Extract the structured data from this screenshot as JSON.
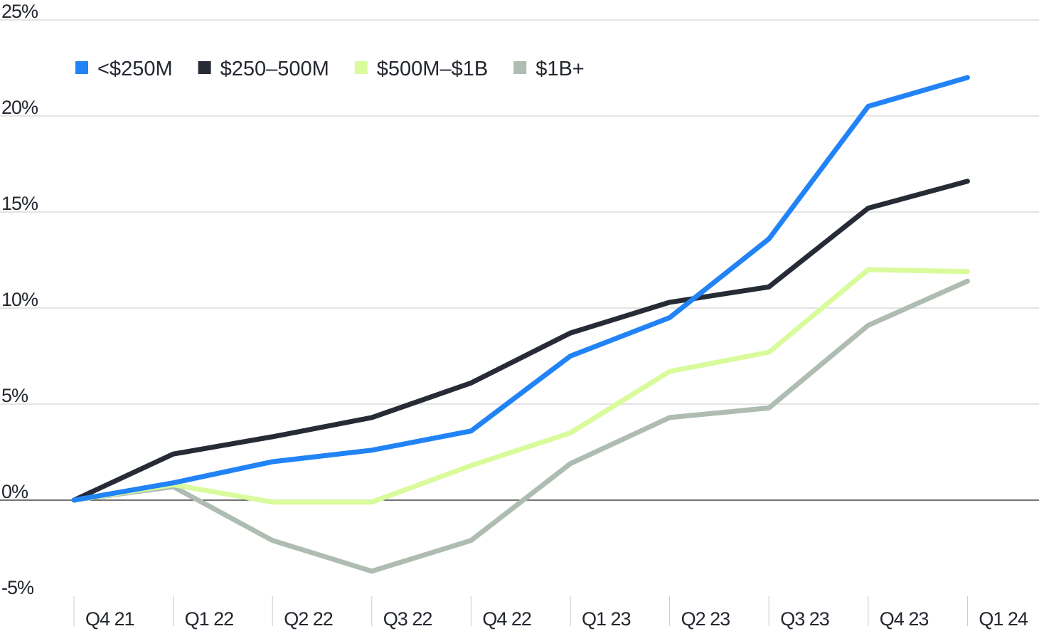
{
  "chart_data": {
    "type": "line",
    "title": "",
    "xlabel": "",
    "ylabel": "",
    "categories": [
      "Q4 21",
      "Q1 22",
      "Q2 22",
      "Q3 22",
      "Q4 22",
      "Q1 23",
      "Q2 23",
      "Q3 23",
      "Q4 23",
      "Q1 24"
    ],
    "ylim": [
      -5,
      25
    ],
    "yticks": [
      -5,
      0,
      5,
      10,
      15,
      20,
      25
    ],
    "ytick_labels": [
      "-5%",
      "0%",
      "5%",
      "10%",
      "15%",
      "20%",
      "25%"
    ],
    "grid": true,
    "legend_position": "top-left",
    "series": [
      {
        "name": "<$250M",
        "color": "#2183f5",
        "values": [
          0,
          0.9,
          2.0,
          2.6,
          3.6,
          7.5,
          9.5,
          13.6,
          20.5,
          22.0
        ]
      },
      {
        "name": "$250–500M",
        "color": "#262b36",
        "values": [
          0,
          2.4,
          3.3,
          4.3,
          6.1,
          8.7,
          10.3,
          11.1,
          15.2,
          16.6
        ]
      },
      {
        "name": "$500M–$1B",
        "color": "#d9fb9c",
        "values": [
          0,
          0.8,
          -0.1,
          -0.1,
          1.8,
          3.5,
          6.7,
          7.7,
          12.0,
          11.9
        ]
      },
      {
        "name": "$1B+",
        "color": "#aebcb1",
        "values": [
          0,
          0.7,
          -2.1,
          -3.7,
          -2.1,
          1.9,
          4.3,
          4.8,
          9.1,
          11.4
        ]
      }
    ]
  }
}
